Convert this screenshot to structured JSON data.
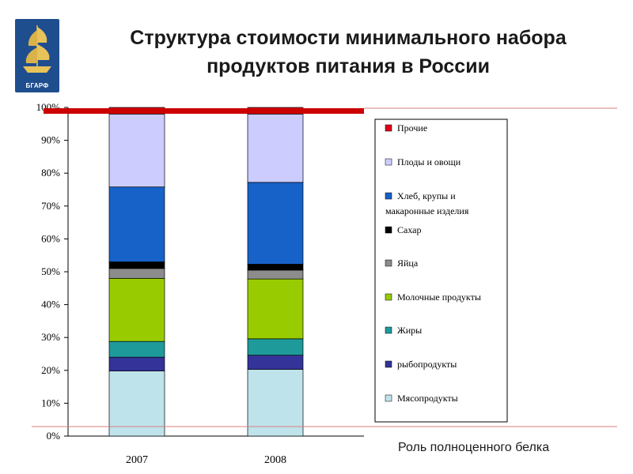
{
  "logo": {
    "text": "БГАРФ",
    "icon": "sailing-ship-icon"
  },
  "header": {
    "title_line1": "Структура стоимости минимального набора",
    "title_line2": "продуктов питания в России"
  },
  "caption": "Роль полноценного белка",
  "chart_data": {
    "type": "bar",
    "stacked": true,
    "categories": [
      "2007",
      "2008"
    ],
    "ylim": [
      0,
      100
    ],
    "yticks": [
      "0%",
      "10%",
      "20%",
      "30%",
      "40%",
      "50%",
      "60%",
      "70%",
      "80%",
      "90%",
      "100%"
    ],
    "grid": false,
    "legend_position": "right",
    "series": [
      {
        "name": "Мясопродукты",
        "color": "#bfe3ea",
        "values": [
          19.8,
          20.3
        ]
      },
      {
        "name": "рыбопродукты",
        "color": "#343399",
        "values": [
          4.2,
          4.3
        ]
      },
      {
        "name": "Жиры",
        "color": "#1f9a9a",
        "values": [
          4.8,
          5.0
        ]
      },
      {
        "name": "Молочные продукты",
        "color": "#99cc00",
        "values": [
          19.2,
          18.2
        ]
      },
      {
        "name": "Яйца",
        "color": "#8c8c8c",
        "values": [
          3.0,
          2.7
        ]
      },
      {
        "name": "Сахар",
        "color": "#000000",
        "values": [
          2.0,
          1.8
        ]
      },
      {
        "name": "Хлеб, крупы и макаронные изделия",
        "color": "#1762c9",
        "values": [
          22.8,
          24.9
        ]
      },
      {
        "name": "Плоды и овощи",
        "color": "#ccccff",
        "values": [
          22.2,
          20.8
        ]
      },
      {
        "name": "Прочие",
        "color": "#e0001b",
        "values": [
          2.0,
          2.0
        ]
      }
    ],
    "annotations": {
      "threshold_line_color": "#cc0000"
    }
  }
}
